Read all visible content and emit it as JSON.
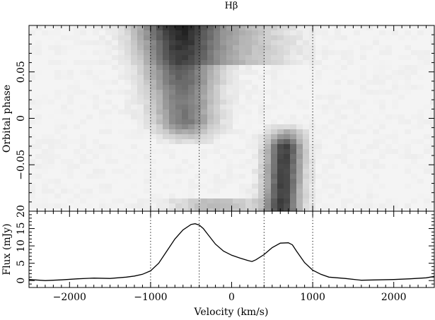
{
  "chart_data": [
    {
      "type": "heatmap",
      "title": "Hβ",
      "xlabel": "",
      "ylabel": "Orbital phase",
      "xlim": [
        -2500,
        2500
      ],
      "ylim": [
        -0.1,
        0.1
      ],
      "yticks": [
        0.05,
        0,
        -0.05
      ],
      "ytick_labels": [
        "0.05",
        "0",
        "−0.05"
      ],
      "colormap": "grayscale, darker = stronger emission",
      "features": [
        {
          "name": "blue emission component",
          "velocity_range": [
            -900,
            -300
          ],
          "phase_range": [
            -0.02,
            0.1
          ]
        },
        {
          "name": "red emission component",
          "velocity_range": [
            400,
            850
          ],
          "phase_range": [
            -0.1,
            -0.02
          ]
        }
      ],
      "reference_lines_velocity": [
        -1000,
        -400,
        400,
        1000
      ]
    },
    {
      "type": "line",
      "xlabel": "Velocity (km/s)",
      "ylabel": "Flux (mJy)",
      "xlim": [
        -2500,
        2500
      ],
      "ylim": [
        -2,
        20
      ],
      "xticks": [
        -2000,
        -1000,
        0,
        1000,
        2000
      ],
      "xtick_labels": [
        "−2000",
        "−1000",
        "0",
        "1000",
        "2000"
      ],
      "yticks": [
        0,
        5,
        10,
        15,
        20
      ],
      "ytick_labels": [
        "0",
        "5",
        "10",
        "15",
        "20"
      ],
      "reference_lines_velocity": [
        -1000,
        -400,
        400,
        1000
      ],
      "series": [
        {
          "x": [
            -2500,
            -2300,
            -2100,
            -1900,
            -1700,
            -1500,
            -1300,
            -1200,
            -1100,
            -1000,
            -900,
            -800,
            -700,
            -600,
            -500,
            -450,
            -400,
            -350,
            -300,
            -200,
            -100,
            0,
            100,
            200,
            250,
            300,
            400,
            500,
            600,
            700,
            750,
            800,
            900,
            1000,
            1100,
            1200,
            1400,
            1600,
            1800,
            2000,
            2200,
            2400,
            2500
          ],
          "y": [
            0.3,
            0.0,
            0.2,
            0.5,
            0.7,
            0.6,
            1.0,
            1.3,
            1.8,
            2.8,
            5.0,
            8.5,
            12.0,
            14.6,
            16.2,
            16.4,
            16.0,
            15.0,
            13.5,
            10.5,
            8.5,
            7.3,
            6.5,
            5.8,
            5.5,
            6.0,
            7.5,
            9.5,
            10.8,
            10.9,
            10.3,
            8.5,
            5.2,
            3.0,
            1.8,
            1.0,
            0.6,
            0.1,
            0.2,
            0.3,
            0.5,
            0.8,
            1.2
          ]
        }
      ]
    }
  ]
}
